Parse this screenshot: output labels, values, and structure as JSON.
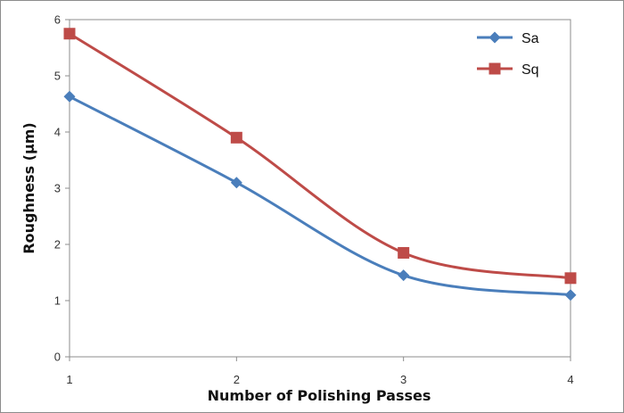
{
  "chart_data": {
    "type": "line",
    "title": "",
    "xlabel": "Number of Polishing Passes",
    "ylabel": "Roughness (µm)",
    "x": [
      1,
      2,
      3,
      4
    ],
    "x_tick_labels": [
      "1",
      "2",
      "3",
      "4"
    ],
    "y_tick_labels": [
      "0",
      "1",
      "2",
      "3",
      "4",
      "5",
      "6"
    ],
    "xlim": [
      1,
      4
    ],
    "ylim": [
      0,
      6
    ],
    "grid": false,
    "legend_position": "top-right",
    "smoothed": true,
    "series": [
      {
        "name": "Sa",
        "values": [
          4.63,
          3.1,
          1.45,
          1.1
        ],
        "color": "#4a7ebb",
        "marker": "diamond"
      },
      {
        "name": "Sq",
        "values": [
          5.75,
          3.9,
          1.85,
          1.4
        ],
        "color": "#be4b48",
        "marker": "square"
      }
    ]
  }
}
